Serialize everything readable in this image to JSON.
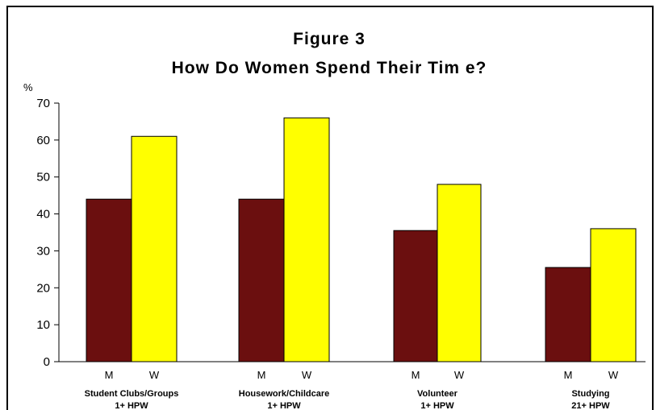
{
  "chart_data": {
    "type": "bar",
    "title": "Figure 3",
    "subtitle": "How Do Women Spend Their Tim e?",
    "ylabel": "%",
    "ylim": [
      0,
      70
    ],
    "yticks": [
      0,
      10,
      20,
      30,
      40,
      50,
      60,
      70
    ],
    "grid": false,
    "categories": [
      {
        "line1": "Student Clubs/Groups",
        "line2": "1+ HPW"
      },
      {
        "line1": "Housework/Childcare",
        "line2": "1+ HPW"
      },
      {
        "line1": "Volunteer",
        "line2": "1+ HPW"
      },
      {
        "line1": "Studying",
        "line2": "21+ HPW"
      }
    ],
    "series": [
      {
        "name": "M",
        "color": "#6b0f0f",
        "values": [
          44,
          44,
          35.5,
          25.5
        ]
      },
      {
        "name": "W",
        "color": "#ffff00",
        "values": [
          61,
          66,
          48,
          36
        ]
      }
    ]
  }
}
